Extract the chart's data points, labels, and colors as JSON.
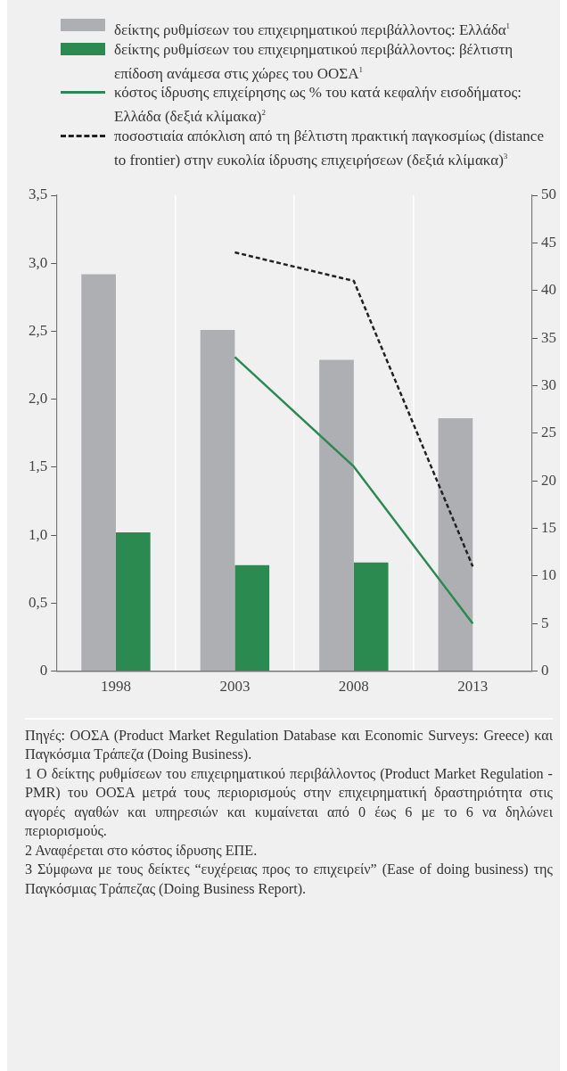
{
  "chart_data": {
    "type": "bar",
    "categories": [
      "1998",
      "2003",
      "2008",
      "2013"
    ],
    "series": [
      {
        "name": "δείκτης ρυθμίσεων του επιχειρηματικού περιβάλλοντος: Ελλάδα$^{1}$",
        "color": "#aeafb3",
        "values": [
          2.92,
          2.51,
          2.29,
          1.86
        ]
      },
      {
        "name": "δείκτης ρυθμίσεων του επιχειρηματικού περιβάλλοντος: βέλτιστη επίδοση ανάμεσα στις χώρες του ΟΟΣΑ$^{1}$",
        "color": "#2a8a50",
        "values": [
          1.02,
          0.78,
          0.8,
          null
        ]
      },
      {
        "name": "κόστος ίδρυσης επιχείρησης ως % του κατά κεφαλήν εισοδήματος: Ελλάδα (δεξιά κλίμακα)$^{2}$",
        "type": "line",
        "axis": "y2",
        "color": "#2a8a50",
        "line_style": "solid",
        "values": [
          null,
          33,
          21.5,
          5
        ]
      },
      {
        "name": "ποσοστιαία απόκλιση από τη βέλτιστη πρακτική παγκοσμίως (distance to frontier) στην ευκολία ίδρυσης επιχειρήσεων (δεξιά κλίμακα)$^{3}$",
        "type": "line",
        "axis": "y2",
        "color": "#222222",
        "line_style": "dashed",
        "values": [
          null,
          44,
          41,
          11
        ]
      }
    ],
    "ylim": [
      0,
      3.5
    ],
    "yticks": [
      {
        "value": 0,
        "label": "0"
      },
      {
        "value": 0.5,
        "label": "0,5"
      },
      {
        "value": 1,
        "label": "1,0"
      },
      {
        "value": 1.5,
        "label": "1,5"
      },
      {
        "value": 2,
        "label": "2,0"
      },
      {
        "value": 2.5,
        "label": "2,5"
      },
      {
        "value": 3,
        "label": "3,0"
      },
      {
        "value": 3.5,
        "label": "3,5"
      }
    ],
    "y2lim": [
      0,
      50
    ],
    "y2ticks": [
      0,
      5,
      10,
      15,
      20,
      25,
      30,
      35,
      40,
      45,
      50
    ],
    "grid": "x",
    "legend": "top",
    "marker": "none",
    "annotations": [
      "Πηγές: ΟΟΣΑ (Product Market Regulation Database και Economic Surveys: Greece) και Παγκόσμια Τράπεζα (Doing Business).",
      "1 Ο δείκτης ρυθμίσεων του επιχειρηματικού περιβάλλοντος (Product Market Regulation - PMR) του ΟΟΣΑ μετρά τους περιορισμούς στην επιχειρηματική δραστηριότητα στις αγορές αγαθών και υπηρεσιών και κυμαίνεται από 0 έως 6 με το 6 να δηλώνει περιορισμούς.",
      "2  Αναφέρεται στο κόστος ίδρυσης ΕΠΕ.",
      "3 Σύμφωνα με τους δείκτες “ευχέρειας προς το επιχειρείν” (Ease of doing business) της Παγκόσμιας Τράπεζας (Doing Business Report)."
    ]
  }
}
